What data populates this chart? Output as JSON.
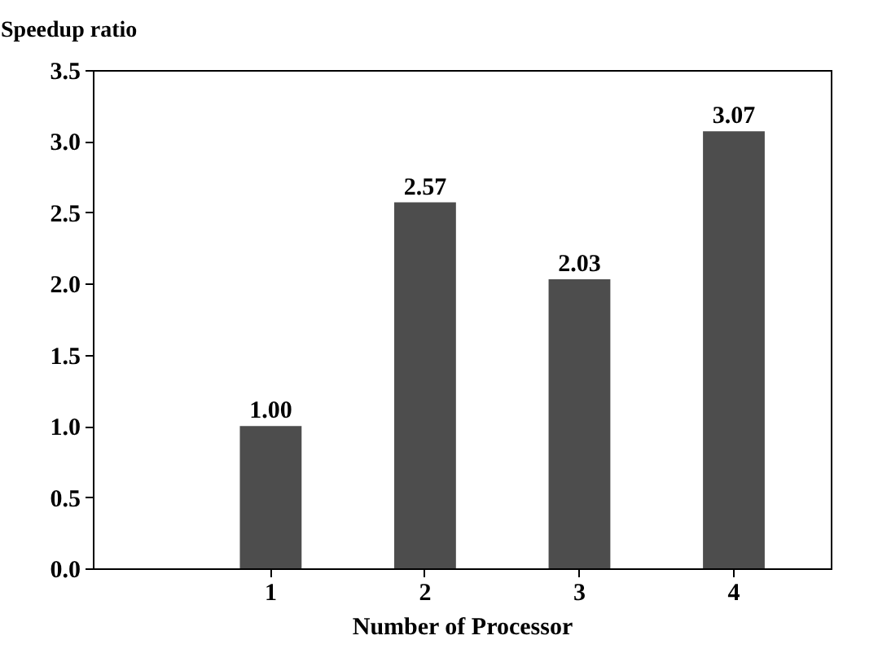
{
  "chart_data": {
    "type": "bar",
    "xlabel": "Number of Processor",
    "ylabel": "Speedup ratio",
    "categories": [
      "1",
      "2",
      "3",
      "4"
    ],
    "values": [
      1.0,
      2.57,
      2.03,
      3.07
    ],
    "value_labels": [
      "1.00",
      "2.57",
      "2.03",
      "3.07"
    ],
    "color": "#4d4d4d",
    "ylim": [
      0,
      3.5
    ],
    "yticks": [
      {
        "value": 0,
        "label": "0.0"
      },
      {
        "value": 0.5,
        "label": "0.5"
      },
      {
        "value": 1,
        "label": "1.0"
      },
      {
        "value": 1.5,
        "label": "1.5"
      },
      {
        "value": 2,
        "label": "2.0"
      },
      {
        "value": 2.5,
        "label": "2.5"
      },
      {
        "value": 3,
        "label": "3.0"
      },
      {
        "value": 3.5,
        "label": "3.5"
      }
    ],
    "grid": false
  }
}
